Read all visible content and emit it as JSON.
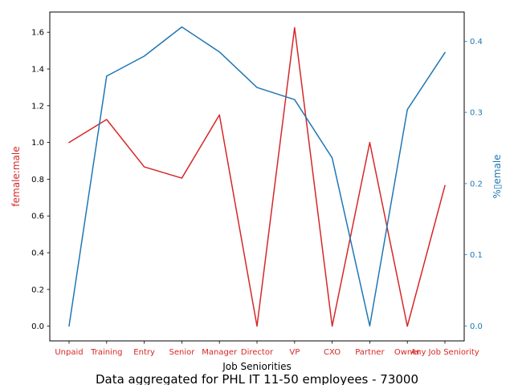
{
  "chart_data": {
    "type": "line",
    "categories": [
      "Unpaid",
      "Training",
      "Entry",
      "Senior",
      "Manager",
      "Director",
      "VP",
      "CXO",
      "Partner",
      "Owner",
      "Any Job Seniority"
    ],
    "xlabel": "Job Seniorities",
    "series": [
      {
        "name": "female:male",
        "axis": "left",
        "color": "#d62728",
        "values": [
          1.0,
          1.125,
          0.867,
          0.806,
          1.15,
          0.0,
          1.625,
          0.0,
          1.0,
          0.0,
          0.765
        ]
      },
      {
        "name": "%female",
        "axis": "right",
        "color": "#1f77b4",
        "values": [
          0.0,
          0.351,
          0.379,
          0.42,
          0.385,
          0.335,
          0.318,
          0.236,
          0.0,
          0.304,
          0.384
        ]
      }
    ],
    "y_left": {
      "label": "female:male",
      "color": "#d62728",
      "ylim": [
        -0.08,
        1.71
      ],
      "ticks": [
        0.0,
        0.2,
        0.4,
        0.6,
        0.8,
        1.0,
        1.2,
        1.4,
        1.6
      ],
      "tick_labels": [
        "0.0",
        "0.2",
        "0.4",
        "0.6",
        "0.8",
        "1.0",
        "1.2",
        "1.4",
        "1.6"
      ]
    },
    "y_right": {
      "label": "%▯emale",
      "color": "#1f77b4",
      "ylim": [
        -0.021,
        0.441
      ],
      "ticks": [
        0.0,
        0.1,
        0.2,
        0.3,
        0.4
      ],
      "tick_labels": [
        "0.0",
        "0.1",
        "0.2",
        "0.3",
        "0.4"
      ]
    },
    "x_tick_color": "#d62728",
    "grid": false,
    "footer_title": "Data aggregated for PHL IT 11-50 employees - 73000"
  }
}
